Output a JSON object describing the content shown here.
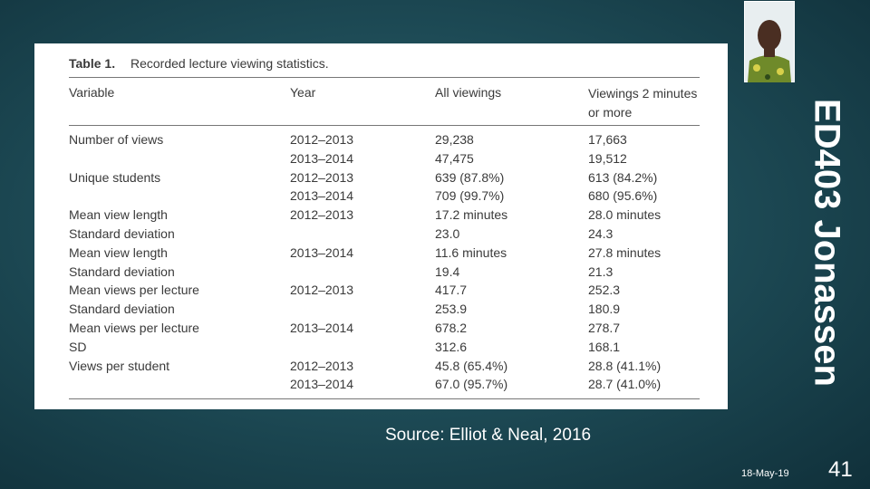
{
  "table": {
    "label": "Table 1.",
    "caption": "Recorded lecture viewing statistics.",
    "header": [
      "Variable",
      "Year",
      "All viewings",
      "Viewings 2 minutes or more"
    ],
    "rows": [
      [
        "Number of views",
        "2012–2013",
        "29,238",
        "17,663"
      ],
      [
        null,
        "2013–2014",
        "47,475",
        "19,512"
      ],
      [
        "Unique students",
        "2012–2013",
        "639 (87.8%)",
        "613 (84.2%)"
      ],
      [
        null,
        "2013–2014",
        "709 (99.7%)",
        "680 (95.6%)"
      ],
      [
        "Mean view length",
        "2012–2013",
        "17.2 minutes",
        "28.0 minutes"
      ],
      [
        "Standard deviation",
        null,
        "23.0",
        "24.3"
      ],
      [
        "Mean view length",
        "2013–2014",
        "11.6 minutes",
        "27.8 minutes"
      ],
      [
        "Standard deviation",
        null,
        "19.4",
        "21.3"
      ],
      [
        "Mean views per lecture",
        "2012–2013",
        "417.7",
        "252.3"
      ],
      [
        "Standard deviation",
        null,
        "253.9",
        "180.9"
      ],
      [
        "Mean views per lecture",
        "2013–2014",
        "678.2",
        "278.7"
      ],
      [
        "SD",
        null,
        "312.6",
        "168.1"
      ],
      [
        "Views per student",
        "2012–2013",
        "45.8 (65.4%)",
        "28.8 (41.1%)"
      ],
      [
        null,
        "2013–2014",
        "67.0 (95.7%)",
        "28.7 (41.0%)"
      ]
    ]
  },
  "side_title": "ED403 Jonassen",
  "source": "Source: Elliot & Neal, 2016",
  "footer": {
    "date": "18-May-19",
    "page": "41"
  }
}
